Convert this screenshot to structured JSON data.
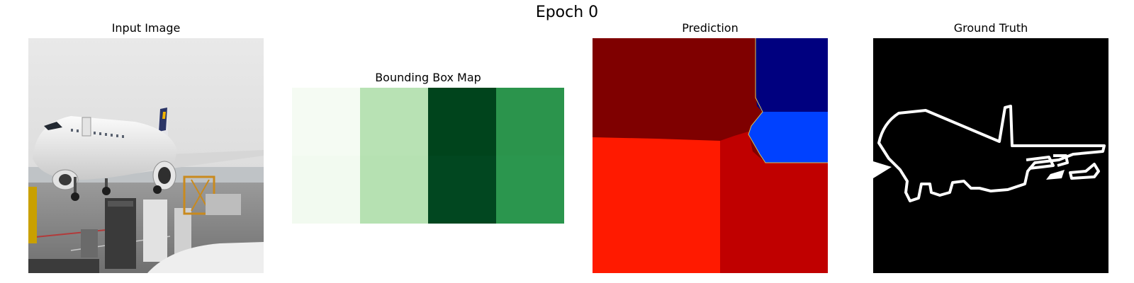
{
  "figure": {
    "title": "Epoch 0"
  },
  "panels": {
    "input": {
      "title": "Input Image",
      "scene": "aircraft-at-gate"
    },
    "bbox": {
      "title": "Bounding Box Map",
      "colormap": "Greens",
      "cells": [
        {
          "color": "#f5fbf3"
        },
        {
          "color": "#b8e2b4"
        },
        {
          "color": "#00441c"
        },
        {
          "color": "#2b944c"
        }
      ],
      "lower_cells": [
        {
          "color": "#f2faf0"
        },
        {
          "color": "#b6e1b2"
        },
        {
          "color": "#014720"
        },
        {
          "color": "#2b964e"
        }
      ]
    },
    "prediction": {
      "title": "Prediction",
      "colormap": "jet",
      "regions": {
        "top_left": "#7f0000",
        "top_right": "#00007f",
        "middle_right": "#0041ff",
        "bottom_left": "#ff1a00",
        "bottom_right": "#c00000"
      }
    },
    "ground_truth": {
      "title": "Ground Truth",
      "background": "#000000",
      "outline": "#ffffff",
      "shape": "airplane-outline"
    }
  }
}
